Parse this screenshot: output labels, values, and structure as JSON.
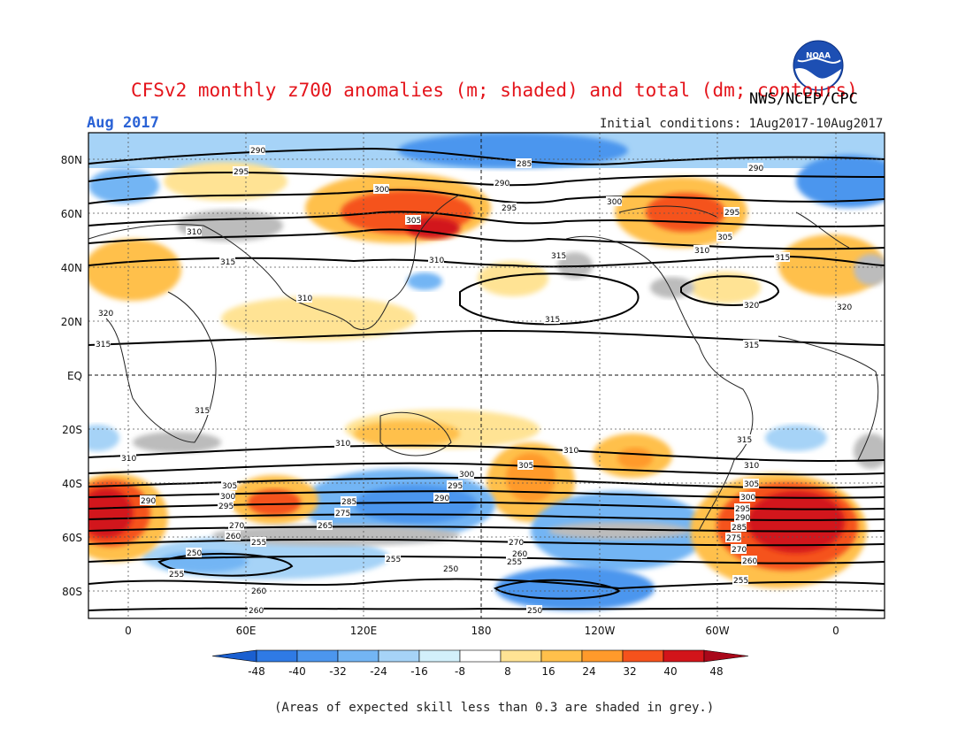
{
  "header": {
    "title": "CFSv2 monthly z700 anomalies (m; shaded) and total (dm; contours)",
    "agency": "NWS/NCEP/CPC",
    "month": "Aug 2017",
    "initial_conditions": "Initial conditions: 1Aug2017-10Aug2017",
    "logo_text": "NOAA"
  },
  "map": {
    "lat_labels": [
      "80N",
      "60N",
      "40N",
      "20N",
      "EQ",
      "20S",
      "40S",
      "60S",
      "80S"
    ],
    "lon_labels": [
      "0",
      "60E",
      "120E",
      "180",
      "120W",
      "60W",
      "0"
    ],
    "contour_values": [
      "285",
      "290",
      "295",
      "300",
      "305",
      "310",
      "315",
      "320",
      "250",
      "255",
      "260",
      "265",
      "270",
      "275",
      "280"
    ]
  },
  "colorbar": {
    "labels": [
      "-48",
      "-40",
      "-32",
      "-24",
      "-16",
      "-8",
      "8",
      "16",
      "24",
      "32",
      "40",
      "48"
    ],
    "colors": [
      "#1a5fd0",
      "#2f7ae5",
      "#4c96ee",
      "#73b5f4",
      "#a6d3f7",
      "#d2f0fb",
      "#ffffff",
      "#ffe394",
      "#ffc04b",
      "#ff9a2b",
      "#f5521c",
      "#d2141a",
      "#a9081a"
    ]
  },
  "footnote": "(Areas of expected skill less than 0.3 are shaded in grey.)"
}
